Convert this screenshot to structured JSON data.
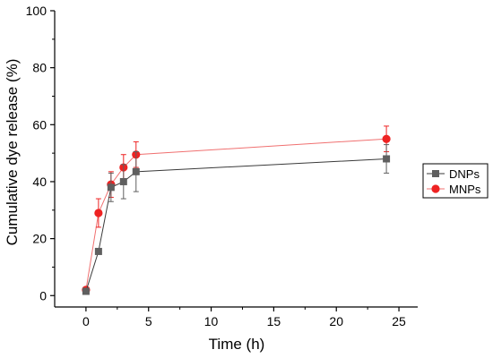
{
  "chart_data": {
    "type": "line",
    "xlabel": "Time (h)",
    "ylabel": "Cumulative dye release (%)",
    "xlim": [
      -2.5,
      26.5
    ],
    "ylim": [
      -4,
      100
    ],
    "xticks": [
      0,
      5,
      10,
      15,
      20,
      25
    ],
    "yticks": [
      0,
      20,
      40,
      60,
      80,
      100
    ],
    "grid": false,
    "legend_position": "right",
    "series": [
      {
        "name": "DNPs",
        "marker": "square",
        "color": "#5f5f5f",
        "line_color": "#3a3a3a",
        "x": [
          0,
          1,
          2,
          3,
          4,
          24
        ],
        "y": [
          1.5,
          15.5,
          38,
          40,
          43.5,
          48
        ],
        "err": [
          0,
          0,
          5,
          6,
          7,
          5
        ]
      },
      {
        "name": "MNPs",
        "marker": "circle",
        "color": "#ee2222",
        "line_color": "#f07070",
        "x": [
          0,
          1,
          2,
          3,
          4,
          24
        ],
        "y": [
          2,
          29,
          39,
          45,
          49.5,
          55
        ],
        "err": [
          0,
          5,
          4.5,
          4.5,
          4.5,
          4.5
        ]
      }
    ]
  }
}
